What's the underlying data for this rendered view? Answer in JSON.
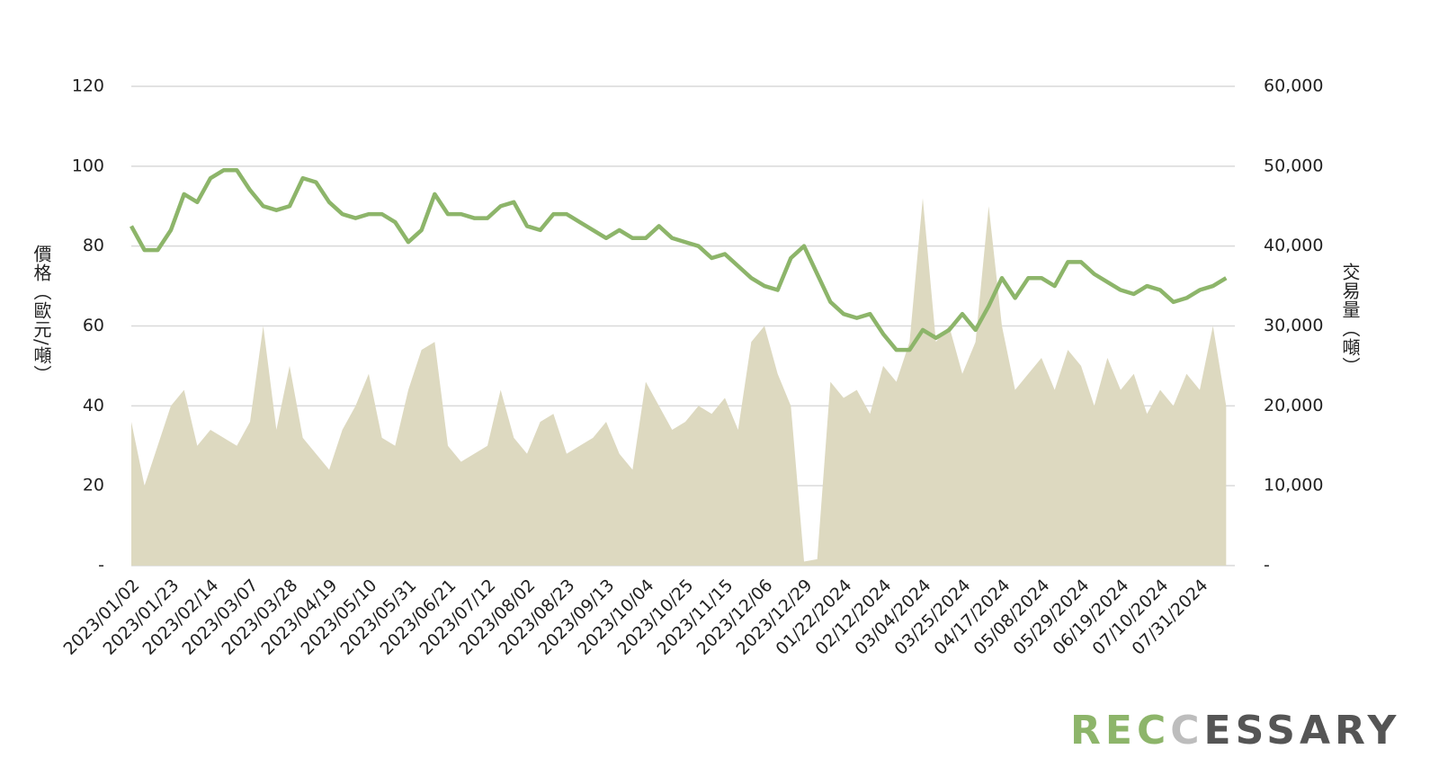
{
  "chart_data": {
    "type": "line",
    "y_label": "價格（歐元/噸）",
    "y2_label": "交易量（噸）",
    "categories": [
      "2023/01/02",
      null,
      null,
      "2023/01/23",
      null,
      null,
      "2023/02/14",
      null,
      null,
      "2023/03/07",
      null,
      null,
      "2023/03/28",
      null,
      null,
      "2023/04/19",
      null,
      null,
      "2023/05/10",
      null,
      null,
      "2023/05/31",
      null,
      null,
      "2023/06/21",
      null,
      null,
      "2023/07/12",
      null,
      null,
      "2023/08/02",
      null,
      null,
      "2023/08/23",
      null,
      null,
      "2023/09/13",
      null,
      null,
      "2023/10/04",
      null,
      null,
      "2023/10/25",
      null,
      null,
      "2023/11/15",
      null,
      null,
      "2023/12/06",
      null,
      null,
      "2023/12/29",
      null,
      null,
      "01/22/2024",
      null,
      null,
      "02/12/2024",
      null,
      null,
      "03/04/2024",
      null,
      null,
      "03/25/2024",
      null,
      null,
      "04/17/2024",
      null,
      null,
      "05/08/2024",
      null,
      null,
      "05/29/2024",
      null,
      null,
      "06/19/2024",
      null,
      null,
      "07/10/2024",
      null,
      null,
      "07/31/2024",
      null,
      null
    ],
    "series": [
      {
        "kind": "area",
        "axis": "y2",
        "color": "#ddd9c0",
        "values": [
          18000,
          10000,
          15000,
          20000,
          22000,
          15000,
          17000,
          16000,
          15000,
          18000,
          30000,
          17000,
          25000,
          16000,
          14000,
          12000,
          17000,
          20000,
          24000,
          16000,
          15000,
          22000,
          27000,
          28000,
          15000,
          13000,
          14000,
          15000,
          22000,
          16000,
          14000,
          18000,
          19000,
          14000,
          15000,
          16000,
          18000,
          14000,
          12000,
          23000,
          20000,
          17000,
          18000,
          20000,
          19000,
          21000,
          17000,
          28000,
          30000,
          24000,
          20000,
          500,
          800,
          23000,
          21000,
          22000,
          19000,
          25000,
          23000,
          28000,
          46000,
          28000,
          30000,
          24000,
          28000,
          45000,
          30000,
          22000,
          24000,
          26000,
          22000,
          27000,
          25000,
          20000,
          26000,
          22000,
          24000,
          19000,
          22000,
          20000,
          24000,
          22000,
          30000,
          20000
        ]
      },
      {
        "kind": "line",
        "axis": "y",
        "color": "#8db56a",
        "values": [
          85,
          79,
          79,
          84,
          93,
          91,
          97,
          99,
          99,
          94,
          90,
          89,
          90,
          97,
          96,
          91,
          88,
          87,
          88,
          88,
          86,
          81,
          84,
          93,
          88,
          88,
          87,
          87,
          90,
          91,
          85,
          84,
          88,
          88,
          86,
          84,
          82,
          84,
          82,
          82,
          85,
          82,
          81,
          80,
          77,
          78,
          75,
          72,
          70,
          69,
          77,
          80,
          73,
          66,
          63,
          62,
          63,
          58,
          54,
          54,
          59,
          57,
          59,
          63,
          59,
          65,
          72,
          67,
          72,
          72,
          70,
          76,
          76,
          73,
          71,
          69,
          68,
          70,
          69,
          66,
          67,
          69,
          70,
          72
        ]
      }
    ],
    "ylim": [
      0,
      120
    ],
    "yticks": [
      {
        "value": 0,
        "label": "-"
      },
      20,
      40,
      60,
      80,
      100,
      120
    ],
    "y2lim": [
      0,
      60000
    ],
    "y2ticks": [
      {
        "value": 0,
        "label": "-"
      },
      {
        "value": 10000,
        "label": "10,000"
      },
      {
        "value": 20000,
        "label": "20,000"
      },
      {
        "value": 30000,
        "label": "30,000"
      },
      {
        "value": 40000,
        "label": "40,000"
      },
      {
        "value": 50000,
        "label": "50,000"
      },
      {
        "value": 60000,
        "label": "60,000"
      }
    ],
    "grid": true,
    "logo": [
      "REC",
      "C",
      "ESSARY"
    ]
  }
}
